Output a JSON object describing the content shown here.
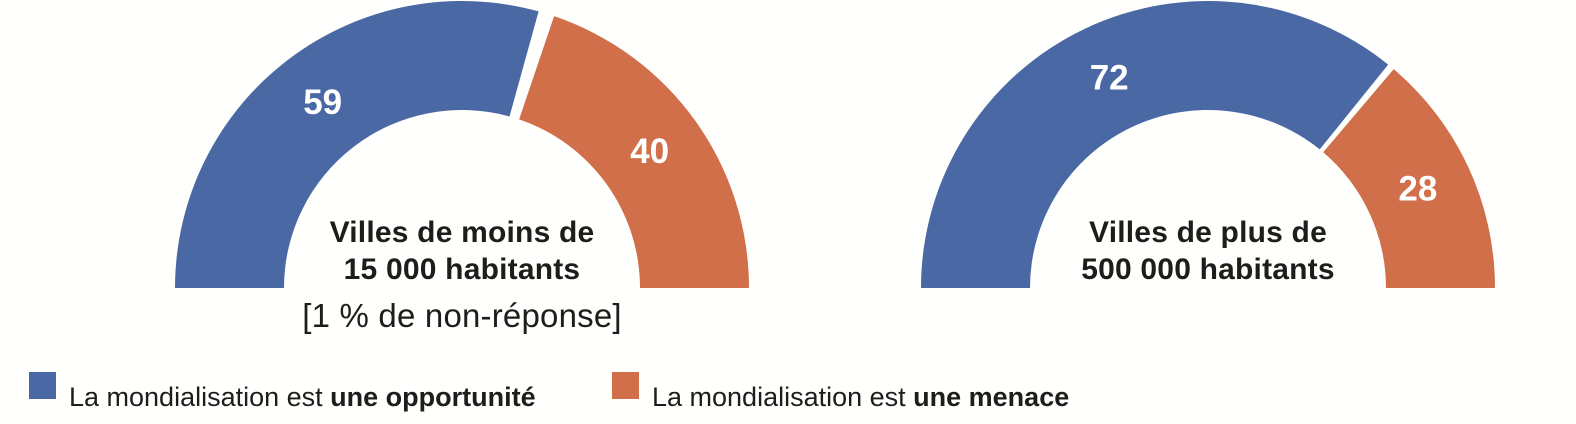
{
  "colors": {
    "opportunity": "#4a69a4",
    "menace": "#d06f49",
    "text": "#1d1d1b",
    "value_label": "#ffffff",
    "background": "#ffffff"
  },
  "chart_data": [
    {
      "type": "pie",
      "variant": "half-donut-gauge",
      "title_lines": [
        "Villes de moins de",
        "15 000 habitants"
      ],
      "note": "[1 % de non-réponse]",
      "unit": "%",
      "angle_span_deg": 180,
      "non_response_pct": 1,
      "segments": [
        {
          "name": "La mondialisation est une opportunité",
          "value": 59,
          "color_key": "opportunity"
        },
        {
          "name": "La mondialisation est une menace",
          "value": 40,
          "color_key": "menace"
        }
      ]
    },
    {
      "type": "pie",
      "variant": "half-donut-gauge",
      "title_lines": [
        "Villes de plus de",
        "500 000 habitants"
      ],
      "note": "",
      "unit": "%",
      "angle_span_deg": 180,
      "non_response_pct": 0,
      "segments": [
        {
          "name": "La mondialisation est une opportunité",
          "value": 72,
          "color_key": "opportunity"
        },
        {
          "name": "La mondialisation est une menace",
          "value": 28,
          "color_key": "menace"
        }
      ]
    }
  ],
  "legend": {
    "items": [
      {
        "prefix": "La mondialisation est ",
        "emphasis": "une opportunité",
        "color_key": "opportunity"
      },
      {
        "prefix": "La mondialisation est ",
        "emphasis": "une menace",
        "color_key": "menace"
      }
    ]
  }
}
